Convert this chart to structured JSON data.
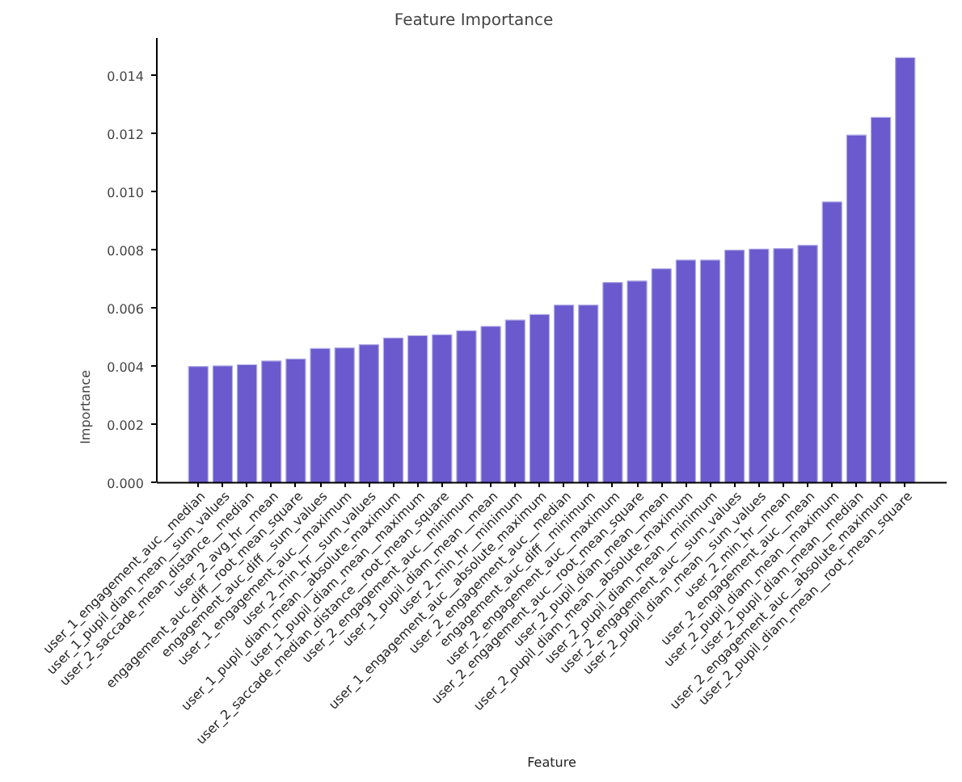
{
  "chart_data": {
    "type": "bar",
    "title": "Feature Importance",
    "xlabel": "Feature",
    "ylabel": "Importance",
    "categories": [
      "user_1_engagement_auc__median",
      "user_1_pupil_diam_mean__sum_values",
      "user_2_saccade_mean_distance__median",
      "user_2_avg_hr__mean",
      "engagement_auc_diff__root_mean_square",
      "engagement_auc_diff__sum_values",
      "user_1_engagement_auc__maximum",
      "user_2_min_hr__sum_values",
      "user_1_pupil_diam_mean__absolute_maximum",
      "user_1_pupil_diam_mean__maximum",
      "user_2_saccade_median_distance__root_mean_square",
      "user_2_engagement_auc__minimum",
      "user_1_pupil_diam_mean__mean",
      "user_2_min_hr__minimum",
      "user_1_engagement_auc__absolute_maximum",
      "user_2_engagement_auc__median",
      "engagement_auc_diff__minimum",
      "user_2_engagement_auc__maximum",
      "user_2_engagement_auc__root_mean_square",
      "user_2_pupil_diam_mean__mean",
      "user_2_pupil_diam_mean__absolute_maximum",
      "user_2_pupil_diam_mean__minimum",
      "user_2_engagement_auc__sum_values",
      "user_2_pupil_diam_mean__sum_values",
      "user_2_min_hr__mean",
      "user_2_engagement_auc__mean",
      "user_2_pupil_diam_mean__maximum",
      "user_2_pupil_diam_mean__median",
      "user_2_engagement_auc__absolute_maximum",
      "user_2_pupil_diam_mean__root_mean_square"
    ],
    "values": [
      0.004,
      0.00402,
      0.00406,
      0.00419,
      0.00426,
      0.00462,
      0.00464,
      0.00475,
      0.00498,
      0.00506,
      0.00509,
      0.00523,
      0.00538,
      0.0056,
      0.00579,
      0.00611,
      0.00611,
      0.00689,
      0.00694,
      0.00736,
      0.00766,
      0.00766,
      0.008,
      0.00804,
      0.00806,
      0.00817,
      0.00966,
      0.01196,
      0.01257,
      0.01462
    ],
    "color": "#6a5acd",
    "ylim": [
      0,
      0.0153
    ],
    "yticks": [
      {
        "value": 0,
        "label": "0.000"
      },
      {
        "value": 0.002,
        "label": "0.002"
      },
      {
        "value": 0.004,
        "label": "0.004"
      },
      {
        "value": 0.006,
        "label": "0.006"
      },
      {
        "value": 0.008,
        "label": "0.008"
      },
      {
        "value": 0.01,
        "label": "0.010"
      },
      {
        "value": 0.012,
        "label": "0.012"
      },
      {
        "value": 0.014,
        "label": "0.014"
      }
    ],
    "grid": false,
    "legend": false
  }
}
